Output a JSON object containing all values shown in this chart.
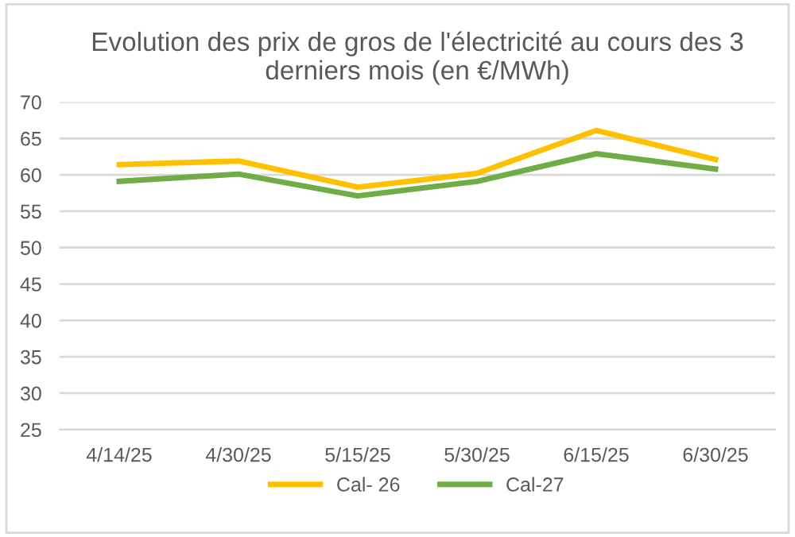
{
  "chart_data": {
    "type": "line",
    "title": "Evolution des prix de gros de l'électricité au cours des 3 derniers mois (en €/MWh)",
    "categories": [
      "4/14/25",
      "4/30/25",
      "5/15/25",
      "5/30/25",
      "6/15/25",
      "6/30/25"
    ],
    "series": [
      {
        "name": "Cal- 26",
        "color": "#ffc000",
        "values": [
          61.4,
          61.9,
          58.3,
          60.2,
          66.1,
          62.1
        ]
      },
      {
        "name": "Cal-27",
        "color": "#70ad47",
        "values": [
          59.1,
          60.1,
          57.1,
          59.1,
          62.9,
          60.8
        ]
      }
    ],
    "ylim": [
      25,
      70
    ],
    "yticks": [
      25,
      30,
      35,
      40,
      45,
      50,
      55,
      60,
      65,
      70
    ],
    "grid": "y",
    "legend": "bottom",
    "marker": "none",
    "line_style": "solid"
  }
}
